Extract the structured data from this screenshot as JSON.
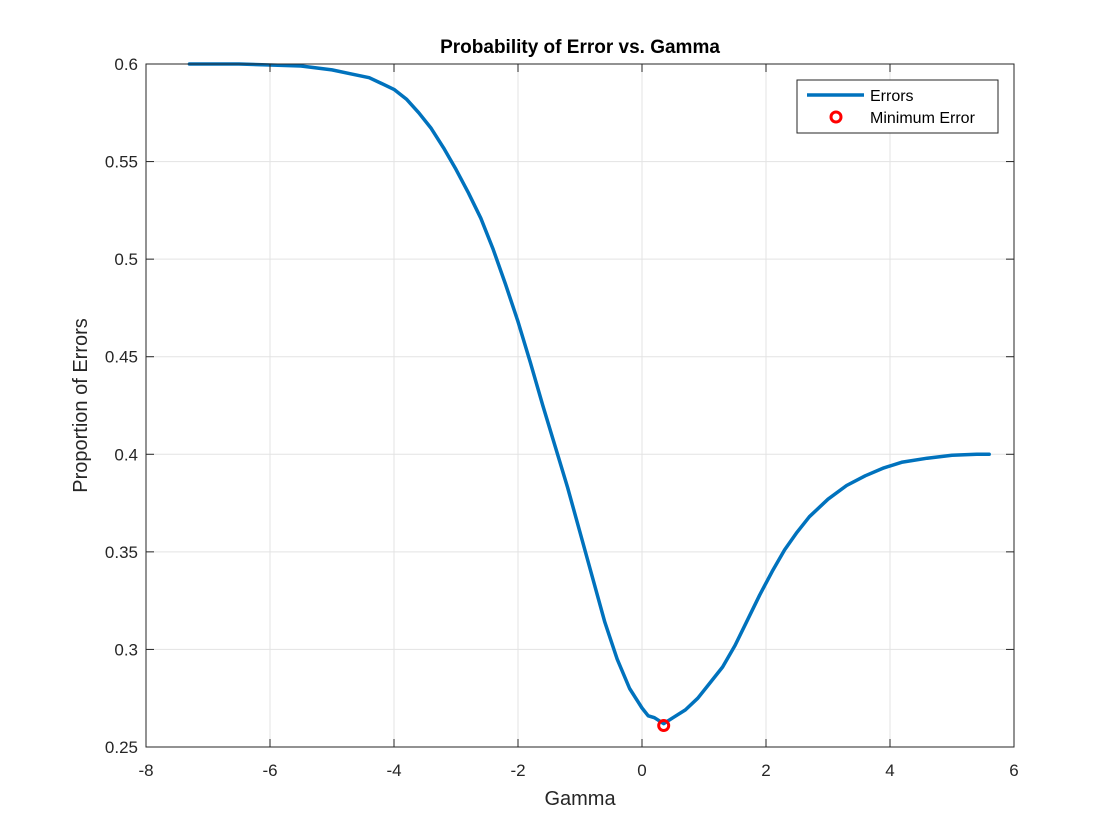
{
  "chart_data": {
    "type": "line",
    "title": "Probability of Error vs. Gamma",
    "xlabel": "Gamma",
    "ylabel": "Proportion of Errors",
    "xlim": [
      -8,
      6
    ],
    "ylim": [
      0.25,
      0.6
    ],
    "xticks": [
      -8,
      -6,
      -4,
      -2,
      0,
      2,
      4,
      6
    ],
    "xtick_labels": [
      "-8",
      "-6",
      "-4",
      "-2",
      "0",
      "2",
      "4",
      "6"
    ],
    "yticks": [
      0.25,
      0.3,
      0.35,
      0.4,
      0.45,
      0.5,
      0.55,
      0.6
    ],
    "ytick_labels": [
      "0.25",
      "0.3",
      "0.35",
      "0.4",
      "0.45",
      "0.5",
      "0.55",
      "0.6"
    ],
    "grid": true,
    "legend_position": "top-right",
    "series": [
      {
        "name": "Errors",
        "color": "#0072BD",
        "x": [
          -7.3,
          -6.5,
          -6.0,
          -5.5,
          -5.0,
          -4.7,
          -4.4,
          -4.2,
          -4.0,
          -3.8,
          -3.6,
          -3.4,
          -3.2,
          -3.0,
          -2.8,
          -2.6,
          -2.4,
          -2.2,
          -2.0,
          -1.8,
          -1.6,
          -1.4,
          -1.2,
          -1.0,
          -0.8,
          -0.6,
          -0.4,
          -0.2,
          0.0,
          0.1,
          0.2,
          0.35,
          0.5,
          0.7,
          0.9,
          1.1,
          1.3,
          1.5,
          1.7,
          1.9,
          2.1,
          2.3,
          2.5,
          2.7,
          3.0,
          3.3,
          3.6,
          3.9,
          4.2,
          4.6,
          5.0,
          5.4,
          5.6
        ],
        "y": [
          0.6,
          0.6,
          0.5995,
          0.599,
          0.597,
          0.595,
          0.593,
          0.59,
          0.587,
          0.582,
          0.575,
          0.567,
          0.557,
          0.546,
          0.534,
          0.521,
          0.505,
          0.487,
          0.468,
          0.447,
          0.425,
          0.404,
          0.383,
          0.36,
          0.337,
          0.314,
          0.295,
          0.28,
          0.27,
          0.266,
          0.265,
          0.262,
          0.265,
          0.269,
          0.275,
          0.283,
          0.291,
          0.302,
          0.315,
          0.328,
          0.34,
          0.351,
          0.36,
          0.368,
          0.377,
          0.384,
          0.389,
          0.393,
          0.396,
          0.398,
          0.3995,
          0.4,
          0.4
        ]
      },
      {
        "name": "Minimum Error",
        "color": "#FF0000",
        "marker": "circle",
        "x": [
          0.35
        ],
        "y": [
          0.261
        ]
      }
    ]
  }
}
